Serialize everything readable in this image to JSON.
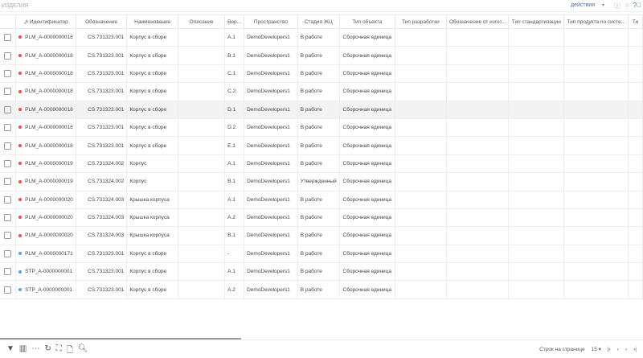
{
  "header": {
    "title": "изделия",
    "actions_label": "действия"
  },
  "columns": [
    "",
    "Идентификатор",
    "Обозначение",
    "Наименование",
    "Описание",
    "Вер...",
    "Пространство",
    "Стадия ЖЦ",
    "Тип объекта",
    "Тип разработки",
    "Обозначение от изгот...",
    "Тип стандартизации",
    "Тип продукта по систе...",
    "Ти"
  ],
  "rows": [
    {
      "id": "PLM_A-0000000018",
      "des": "CS.731323.001",
      "name": "Корпус в сборе",
      "ver": "A.1",
      "space": "DemoDevelopers1",
      "stage": "В работе",
      "type": "Сборочная единица",
      "color": "#e05555"
    },
    {
      "id": "PLM_A-0000000018",
      "des": "CS.731323.001",
      "name": "Корпус в сборе",
      "ver": "B.1",
      "space": "DemoDevelopers1",
      "stage": "В работе",
      "type": "Сборочная единица",
      "color": "#e05555"
    },
    {
      "id": "PLM_A-0000000018",
      "des": "CS.731323.001",
      "name": "Корпус в сборе",
      "ver": "C.1",
      "space": "DemoDevelopers1",
      "stage": "В работе",
      "type": "Сборочная единица",
      "color": "#e05555"
    },
    {
      "id": "PLM_A-0000000018",
      "des": "CS.731323.001",
      "name": "Корпус в сборе",
      "ver": "C.2",
      "space": "DemoDevelopers1",
      "stage": "В работе",
      "type": "Сборочная единица",
      "color": "#e05555"
    },
    {
      "id": "PLM_A-0000000018",
      "des": "CS.731323.001",
      "name": "Корпус в сборе",
      "ver": "D.1",
      "space": "DemoDevelopers1",
      "stage": "В работе",
      "type": "Сборочная единица",
      "color": "#e05555"
    },
    {
      "id": "PLM_A-0000000018",
      "des": "CS.731323.001",
      "name": "Корпус в сборе",
      "ver": "D.2",
      "space": "DemoDevelopers1",
      "stage": "В работе",
      "type": "Сборочная единица",
      "color": "#e05555"
    },
    {
      "id": "PLM_A-0000000018",
      "des": "CS.731323.001",
      "name": "Корпус в сборе",
      "ver": "E.1",
      "space": "DemoDevelopers1",
      "stage": "В работе",
      "type": "Сборочная единица",
      "color": "#e05555"
    },
    {
      "id": "PLM_A-0000000019",
      "des": "CS.731324.002",
      "name": "Корпус",
      "ver": "A.1",
      "space": "DemoDevelopers1",
      "stage": "В работе",
      "type": "Сборочная единица",
      "color": "#e05555"
    },
    {
      "id": "PLM_A-0000000019",
      "des": "CS.731324.002",
      "name": "Корпус",
      "ver": "B.1",
      "space": "DemoDevelopers1",
      "stage": "Утвержденный",
      "type": "Сборочная единица",
      "color": "#e05555"
    },
    {
      "id": "PLM_A-0000000020",
      "des": "CS.731324.003",
      "name": "Крышка корпуса",
      "ver": "A.1",
      "space": "DemoDevelopers1",
      "stage": "В работе",
      "type": "Сборочная единица",
      "color": "#e05555"
    },
    {
      "id": "PLM_A-0000000020",
      "des": "CS.731324.003",
      "name": "Крышка корпуса",
      "ver": "A.2",
      "space": "DemoDevelopers1",
      "stage": "В работе",
      "type": "Сборочная единица",
      "color": "#e05555"
    },
    {
      "id": "PLM_A-0000000020",
      "des": "CS.731324.003",
      "name": "Крышка корпуса",
      "ver": "B.1",
      "space": "DemoDevelopers1",
      "stage": "В работе",
      "type": "Сборочная единица",
      "color": "#e05555"
    },
    {
      "id": "PLM_A-0000000171",
      "des": "CS.731323.001",
      "name": "Корпус в сборе",
      "ver": "-",
      "space": "DemoDevelopers1",
      "stage": "В работе",
      "type": "Сборочная единица",
      "color": "#5aa8c8"
    },
    {
      "id": "STP_A-0000000001",
      "des": "CS.731323.001",
      "name": "Корпус в сборе",
      "ver": "A.1",
      "space": "DemoDevelopers1",
      "stage": "В работе",
      "type": "Сборочная единица",
      "color": "#5aa8c8"
    },
    {
      "id": "STP_A-0000000001",
      "des": "CS.731323.001",
      "name": "Корпус в сборе",
      "ver": "A.2",
      "space": "DemoDevelopers1",
      "stage": "В работе",
      "type": "Сборочная единица",
      "color": "#5aa8c8"
    }
  ],
  "highlighted_row": 4,
  "footer": {
    "rows_per_page_label": "Строк на странице",
    "rows_per_page": "15"
  }
}
